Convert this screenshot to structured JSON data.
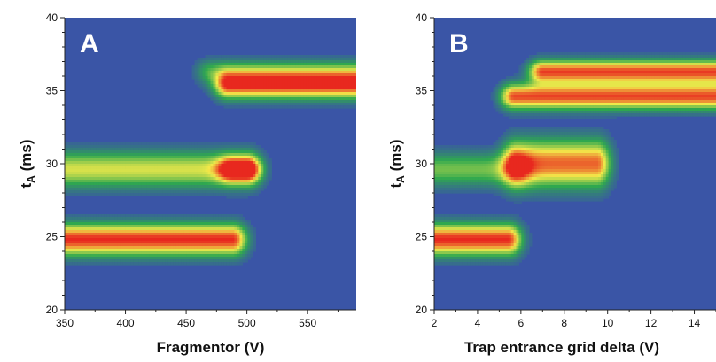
{
  "chart_data": [
    {
      "type": "heatmap",
      "panel_label": "A",
      "xlabel": "Fragmentor (V)",
      "ylabel_main": "t",
      "ylabel_sub": "A",
      "ylabel_unit": " (ms)",
      "xlim": [
        350,
        590
      ],
      "ylim": [
        20,
        40
      ],
      "x_ticks": [
        350,
        400,
        450,
        500,
        550
      ],
      "y_ticks": [
        20,
        25,
        30,
        35,
        40
      ],
      "background_color": "#3a55a6",
      "color_scale": [
        "#3a55a6",
        "#2fa84f",
        "#f2ea4a",
        "#e8281f"
      ],
      "blobs": [
        {
          "x_start": 350,
          "x_end": 488,
          "y": 24.8,
          "intensity": 1.0,
          "y_spread": 0.75
        },
        {
          "x_start": 350,
          "x_end": 500,
          "y": 29.6,
          "intensity": 0.62,
          "y_spread": 0.85
        },
        {
          "x_start": 485,
          "x_end": 590,
          "y": 35.4,
          "intensity": 1.0,
          "y_spread": 0.65
        },
        {
          "x_start": 470,
          "x_end": 590,
          "y": 36.3,
          "intensity": 0.35,
          "y_spread": 0.6
        },
        {
          "x_start": 488,
          "x_end": 500,
          "y": 29.6,
          "intensity": 0.8,
          "y_spread": 0.6
        }
      ]
    },
    {
      "type": "heatmap",
      "panel_label": "B",
      "xlabel": "Trap entrance grid delta (V)",
      "ylabel_main": "t",
      "ylabel_sub": "A",
      "ylabel_unit": " (ms)",
      "xlim": [
        2,
        15
      ],
      "ylim": [
        20,
        40
      ],
      "x_ticks": [
        2,
        4,
        6,
        8,
        10,
        12,
        14
      ],
      "y_ticks": [
        20,
        25,
        30,
        35,
        40
      ],
      "background_color": "#3a55a6",
      "color_scale": [
        "#3a55a6",
        "#2fa84f",
        "#f2ea4a",
        "#e8281f"
      ],
      "blobs": [
        {
          "x_start": 2,
          "x_end": 5.4,
          "y": 24.8,
          "intensity": 1.0,
          "y_spread": 0.75
        },
        {
          "x_start": 2,
          "x_end": 5.8,
          "y": 29.6,
          "intensity": 0.45,
          "y_spread": 0.8
        },
        {
          "x_start": 5.8,
          "x_end": 9.5,
          "y": 30.0,
          "intensity": 0.9,
          "y_spread": 1.1
        },
        {
          "x_start": 5.7,
          "x_end": 15,
          "y": 34.6,
          "intensity": 0.95,
          "y_spread": 0.6
        },
        {
          "x_start": 7,
          "x_end": 15,
          "y": 36.3,
          "intensity": 0.95,
          "y_spread": 0.55
        }
      ]
    }
  ]
}
